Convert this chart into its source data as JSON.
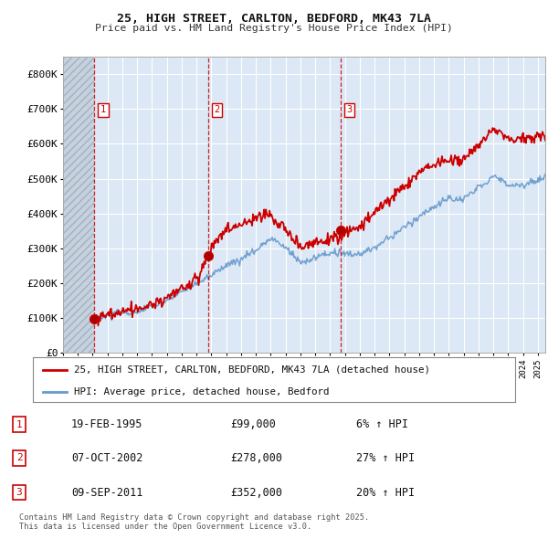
{
  "title_line1": "25, HIGH STREET, CARLTON, BEDFORD, MK43 7LA",
  "title_line2": "Price paid vs. HM Land Registry's House Price Index (HPI)",
  "plot_bg_color": "#dce8f5",
  "grid_color": "#c8d8e8",
  "red_line_color": "#cc0000",
  "blue_line_color": "#6699cc",
  "legend_label_red": "25, HIGH STREET, CARLTON, BEDFORD, MK43 7LA (detached house)",
  "legend_label_blue": "HPI: Average price, detached house, Bedford",
  "ylim": [
    0,
    850000
  ],
  "yticks": [
    0,
    100000,
    200000,
    300000,
    400000,
    500000,
    600000,
    700000,
    800000
  ],
  "ytick_labels": [
    "£0",
    "£100K",
    "£200K",
    "£300K",
    "£400K",
    "£500K",
    "£600K",
    "£700K",
    "£800K"
  ],
  "sale_dates": [
    1995.12,
    2002.77,
    2011.69
  ],
  "sale_prices": [
    99000,
    278000,
    352000
  ],
  "sale_labels": [
    "1",
    "2",
    "3"
  ],
  "vline_color": "#cc0000",
  "footer_text": "Contains HM Land Registry data © Crown copyright and database right 2025.\nThis data is licensed under the Open Government Licence v3.0.",
  "table_data": [
    [
      "1",
      "19-FEB-1995",
      "£99,000",
      "6% ↑ HPI"
    ],
    [
      "2",
      "07-OCT-2002",
      "£278,000",
      "27% ↑ HPI"
    ],
    [
      "3",
      "09-SEP-2011",
      "£352,000",
      "20% ↑ HPI"
    ]
  ],
  "xmin": 1993.0,
  "xmax": 2025.5,
  "hatch_end_year": 1995.12,
  "hpi_base_years": [
    1995.0,
    1996,
    1997,
    1998,
    1999,
    2000,
    2001,
    2002,
    2003,
    2004,
    2005,
    2006,
    2007,
    2008,
    2009,
    2010,
    2011,
    2012,
    2013,
    2014,
    2015,
    2016,
    2017,
    2018,
    2019,
    2020,
    2021,
    2022,
    2023,
    2024,
    2025.5
  ],
  "hpi_base_vals": [
    93000,
    102000,
    110000,
    120000,
    135000,
    155000,
    175000,
    200000,
    225000,
    255000,
    270000,
    295000,
    330000,
    305000,
    260000,
    280000,
    295000,
    295000,
    300000,
    315000,
    340000,
    370000,
    400000,
    430000,
    450000,
    440000,
    480000,
    510000,
    490000,
    490000,
    510000
  ],
  "red_base_years": [
    1995.12,
    1996,
    1997,
    1998,
    1999,
    2000,
    2001,
    2002.0,
    2002.77,
    2003,
    2004,
    2005,
    2006,
    2007,
    2008,
    2009,
    2010,
    2011.0,
    2011.69,
    2012,
    2013,
    2014,
    2015,
    2016,
    2017,
    2018,
    2019,
    2020,
    2021,
    2022,
    2023,
    2024,
    2025.5
  ],
  "red_base_vals": [
    99000,
    108000,
    118000,
    128000,
    145000,
    167000,
    192000,
    220000,
    278000,
    305000,
    355000,
    375000,
    405000,
    415000,
    370000,
    330000,
    345000,
    350000,
    352000,
    365000,
    380000,
    410000,
    450000,
    490000,
    530000,
    555000,
    565000,
    570000,
    610000,
    655000,
    630000,
    625000,
    640000
  ],
  "noise_scale_hpi": 5000,
  "noise_scale_red": 8000
}
